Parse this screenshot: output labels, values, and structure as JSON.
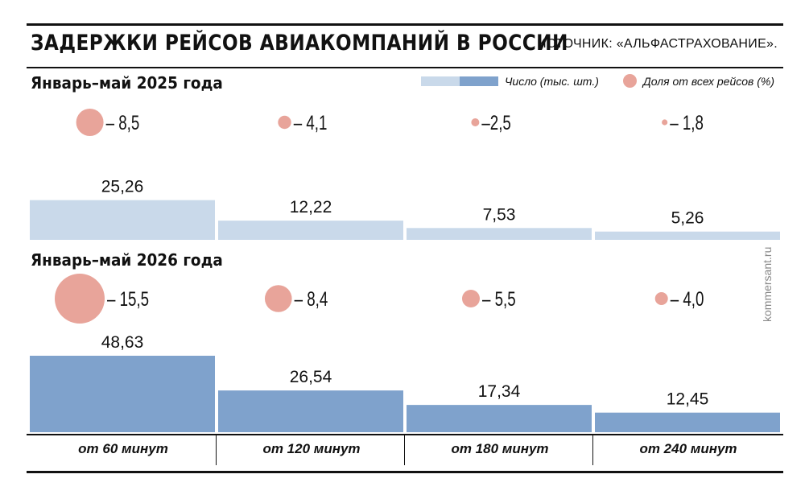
{
  "header": {
    "title": "ЗАДЕРЖКИ РЕЙСОВ АВИАКОМПАНИЙ В РОССИИ",
    "source": "ИСТОЧНИК: «АЛЬФАСТРАХОВАНИЕ»."
  },
  "legend": {
    "count_label": "Число (тыс. шт.)",
    "share_label": "Доля от всех рейсов (%)"
  },
  "brand": "kommersant.ru",
  "colors": {
    "bar_2025": "#c9d9ea",
    "bar_2026": "#7fa2cc",
    "bubble": "#e8a49a"
  },
  "chart_data": {
    "type": "bar",
    "categories": [
      "от 60 минут",
      "от 120 минут",
      "от 180 минут",
      "от 240 минут"
    ],
    "series": [
      {
        "name": "Январь–май 2025 года",
        "values": [
          25.26,
          12.22,
          7.53,
          5.26
        ],
        "labels": [
          "25,26",
          "12,22",
          "7,53",
          "5,26"
        ],
        "share_values": [
          8.5,
          4.1,
          2.5,
          1.8
        ],
        "share_labels": [
          "– 8,5",
          "– 4,1",
          "–2,5",
          "– 1,8"
        ]
      },
      {
        "name": "Январь–май 2026 года",
        "values": [
          48.63,
          26.54,
          17.34,
          12.45
        ],
        "labels": [
          "48,63",
          "26,54",
          "17,34",
          "12,45"
        ],
        "share_values": [
          15.5,
          8.4,
          5.5,
          4.0
        ],
        "share_labels": [
          "– 15,5",
          "– 8,4",
          "– 5,5",
          "– 4,0"
        ]
      }
    ],
    "title": "ЗАДЕРЖКИ РЕЙСОВ АВИАКОМПАНИЙ В РОССИИ",
    "xlabel": "",
    "ylabel": "",
    "grid": false,
    "legend_position": "top-right"
  }
}
